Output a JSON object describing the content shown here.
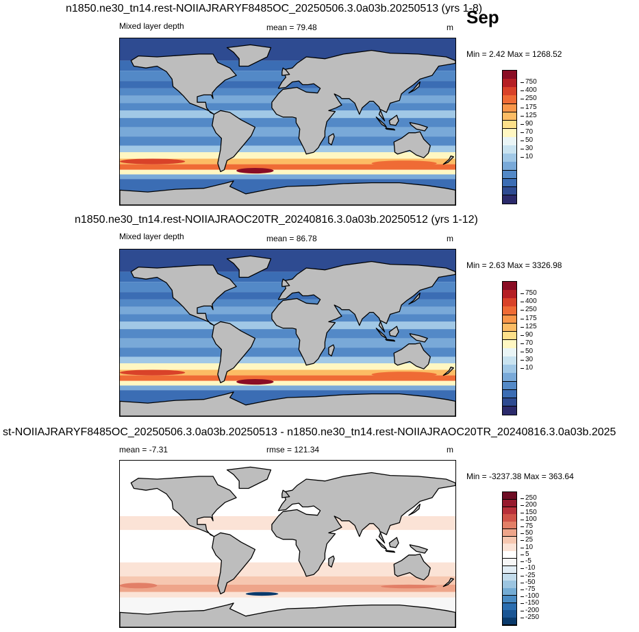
{
  "month_label": "Sep",
  "panels": [
    {
      "title": "n1850.ne30_tn14.rest-NOIIAJRARYF8485OC_20250506.3.0a03b.20250513 (yrs 1-8)",
      "left_label": "Mixed layer depth",
      "center_label": "mean =  79.48",
      "units": "m",
      "minmax": "Min =   2.42 Max = 1268.52",
      "colorbar": {
        "colors": [
          "#2b2a6b",
          "#2e4b91",
          "#3b6db4",
          "#5389c7",
          "#79a9d8",
          "#a1c8e6",
          "#c9e3f0",
          "#eaf5f6",
          "#fff7c2",
          "#fde08a",
          "#fcbc64",
          "#f99649",
          "#ef6b35",
          "#d94229",
          "#b51f24",
          "#8a0d24"
        ],
        "ticks": [
          "750",
          "400",
          "250",
          "175",
          "125",
          "90",
          "70",
          "50",
          "30",
          "10"
        ]
      },
      "map_style": "full"
    },
    {
      "title": "n1850.ne30_tn14.rest-NOIIAJRAOC20TR_20240816.3.0a03b.20250512 (yrs 1-12)",
      "left_label": "Mixed layer depth",
      "center_label": "mean =  86.78",
      "units": "m",
      "minmax": "Min =   2.63 Max = 3326.98",
      "colorbar": {
        "colors": [
          "#2b2a6b",
          "#2e4b91",
          "#3b6db4",
          "#5389c7",
          "#79a9d8",
          "#a1c8e6",
          "#c9e3f0",
          "#eaf5f6",
          "#fff7c2",
          "#fde08a",
          "#fcbc64",
          "#f99649",
          "#ef6b35",
          "#d94229",
          "#b51f24",
          "#8a0d24"
        ],
        "ticks": [
          "750",
          "400",
          "250",
          "175",
          "125",
          "90",
          "70",
          "50",
          "30",
          "10"
        ]
      },
      "map_style": "full"
    },
    {
      "title": "st-NOIIAJRARYF8485OC_20250506.3.0a03b.20250513 - n1850.ne30_tn14.rest-NOIIAJRAOC20TR_20240816.3.0a03b.2025",
      "left_label": "mean =  -7.31",
      "center_label": "rmse = 121.34",
      "units": "m",
      "minmax": "Min = -3237.38 Max = 363.64",
      "colorbar": {
        "colors": [
          "#0a3a6c",
          "#1a5594",
          "#2b6eb0",
          "#4a8cc4",
          "#74acd4",
          "#9cc5e1",
          "#c3dcec",
          "#e2edf5",
          "#f7f7f7",
          "#ffffff",
          "#fbe3d6",
          "#f6c7b0",
          "#eea58a",
          "#e27f67",
          "#d05449",
          "#b8303a",
          "#971a2e",
          "#6e0d24"
        ],
        "ticks": [
          "250",
          "200",
          "150",
          "100",
          "75",
          "50",
          "25",
          "10",
          "5",
          "-5",
          "-10",
          "-25",
          "-50",
          "-75",
          "-100",
          "-150",
          "-200",
          "-250"
        ]
      },
      "map_style": "diff"
    }
  ]
}
